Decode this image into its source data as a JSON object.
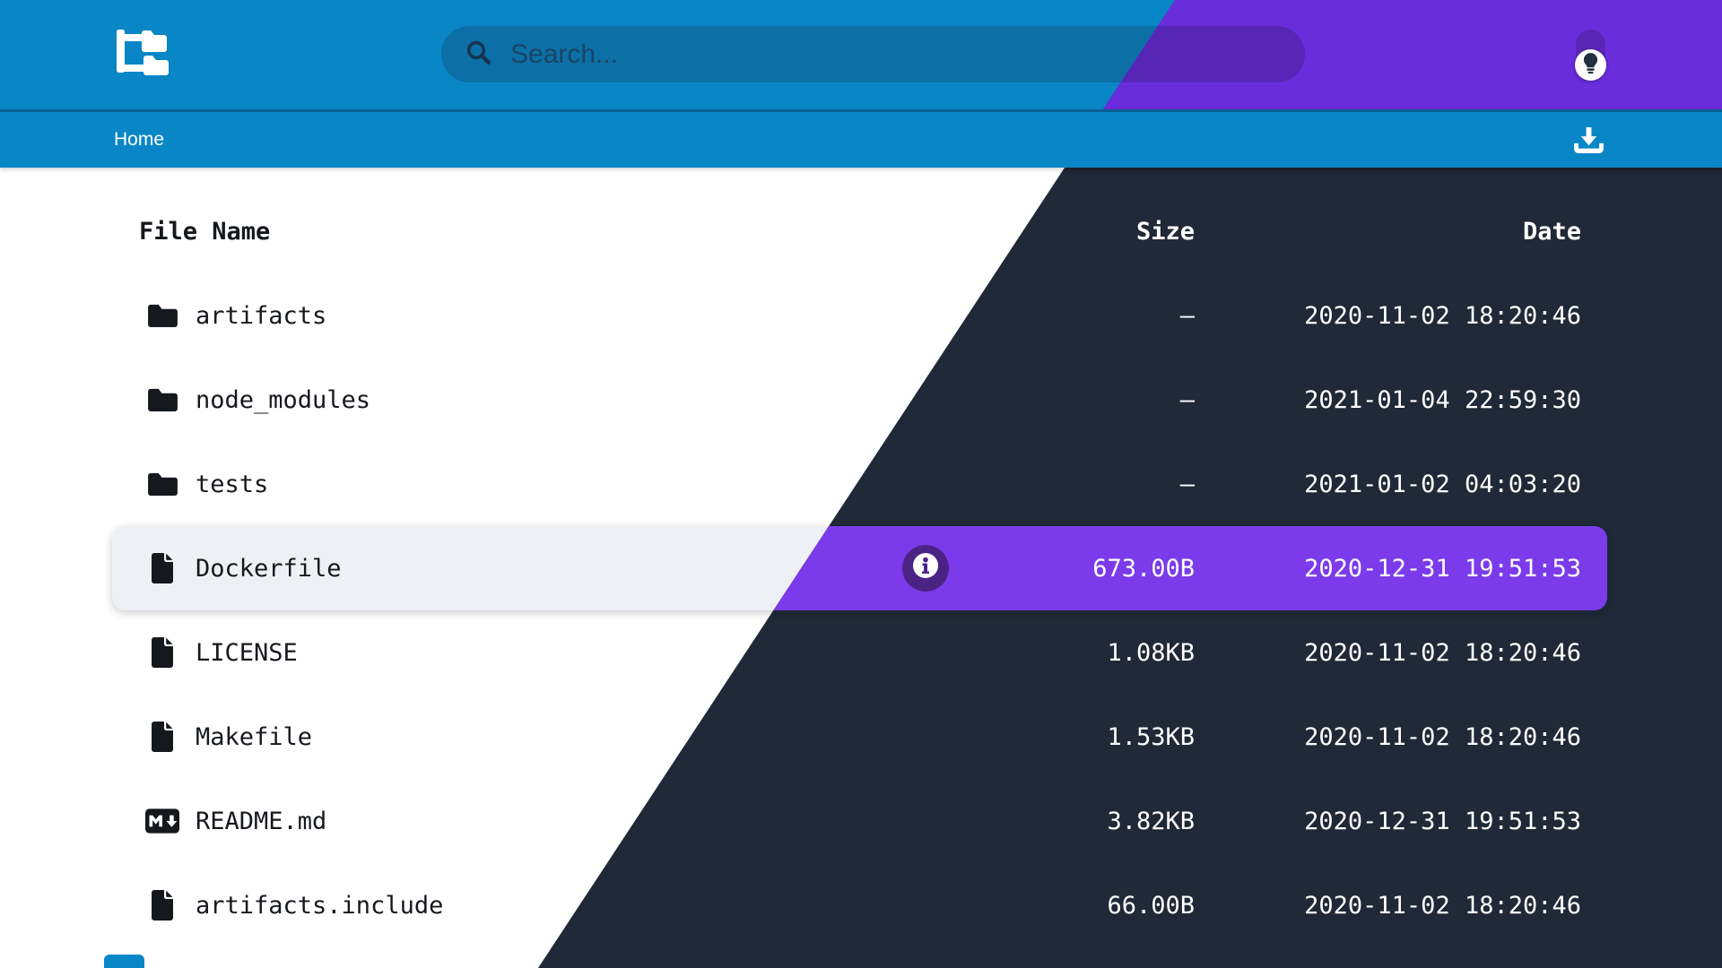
{
  "header": {
    "search_placeholder": "Search...",
    "logo_icon": "folder-tree-icon",
    "search_icon": "magnifier-icon",
    "theme_toggle_icon": "lightbulb-icon"
  },
  "breadcrumb": {
    "home_label": "Home",
    "download_icon": "download-icon"
  },
  "table": {
    "headers": [
      "File Name",
      "Size",
      "Date"
    ],
    "rows": [
      {
        "icon": "folder-icon",
        "name": "artifacts",
        "size": "—",
        "date": "2020-11-02 18:20:46",
        "selected": false
      },
      {
        "icon": "folder-icon",
        "name": "node_modules",
        "size": "—",
        "date": "2021-01-04 22:59:30",
        "selected": false
      },
      {
        "icon": "folder-icon",
        "name": "tests",
        "size": "—",
        "date": "2021-01-02 04:03:20",
        "selected": false
      },
      {
        "icon": "file-icon",
        "name": "Dockerfile",
        "size": "673.00B",
        "date": "2020-12-31 19:51:53",
        "selected": true
      },
      {
        "icon": "file-icon",
        "name": "LICENSE",
        "size": "1.08KB",
        "date": "2020-11-02 18:20:46",
        "selected": false
      },
      {
        "icon": "file-icon",
        "name": "Makefile",
        "size": "1.53KB",
        "date": "2020-11-02 18:20:46",
        "selected": false
      },
      {
        "icon": "markdown-icon",
        "name": "README.md",
        "size": "3.82KB",
        "date": "2020-12-31 19:51:53",
        "selected": false
      },
      {
        "icon": "file-icon",
        "name": "artifacts.include",
        "size": "66.00B",
        "date": "2020-11-02 18:20:46",
        "selected": false
      }
    ]
  },
  "colors": {
    "light_header": "#0986c6",
    "light_search": "#0c6fa6",
    "light_bg": "#ffffff",
    "light_selected_row": "#edf0f4",
    "dark_header": "#6a2ddc",
    "dark_search": "#5826b7",
    "dark_bg": "#1f2937",
    "dark_selected_row": "#7b3bea",
    "info_button": "#4a2385"
  }
}
